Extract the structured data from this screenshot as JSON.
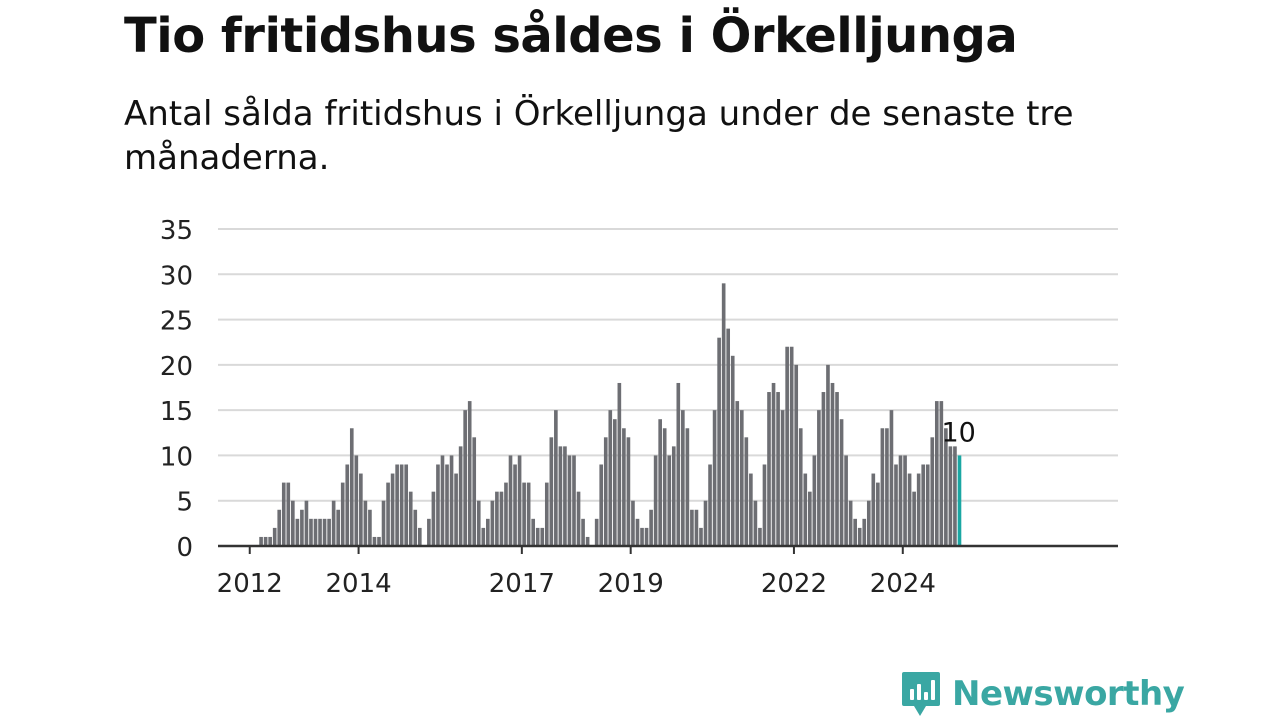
{
  "header": {
    "title": "Tio fritidshus såldes i Örkelljunga",
    "subtitle": "Antal sålda fritidshus i Örkelljunga under de senaste tre månaderna."
  },
  "brand": {
    "name": "Newsworthy",
    "color": "#3aa7a3",
    "icon": "newsworthy-logo-icon"
  },
  "colors": {
    "bar": "#6d6e73",
    "highlight": "#1aa7a3",
    "grid": "#d9d9d9",
    "axis": "#333333"
  },
  "chart_data": {
    "type": "bar",
    "title": "Tio fritidshus såldes i Örkelljunga",
    "subtitle": "Antal sålda fritidshus i Örkelljunga under de senaste tre månaderna.",
    "xlabel": "",
    "ylabel": "",
    "ylim": [
      0,
      35
    ],
    "yticks": [
      0,
      5,
      10,
      15,
      20,
      25,
      30,
      35
    ],
    "grid": true,
    "x_tick_labels": [
      "2012",
      "2014",
      "2017",
      "2019",
      "2022",
      "2024"
    ],
    "first_period": "2011-06",
    "frequency": "monthly",
    "values": [
      0,
      0,
      0,
      0,
      0,
      0,
      0,
      0,
      0,
      1,
      1,
      1,
      2,
      4,
      7,
      7,
      5,
      3,
      4,
      5,
      3,
      3,
      3,
      3,
      3,
      5,
      4,
      7,
      9,
      13,
      10,
      8,
      5,
      4,
      1,
      1,
      5,
      7,
      8,
      9,
      9,
      9,
      6,
      4,
      2,
      0,
      3,
      6,
      9,
      10,
      9,
      10,
      8,
      11,
      15,
      16,
      12,
      5,
      2,
      3,
      5,
      6,
      6,
      7,
      10,
      9,
      10,
      7,
      7,
      3,
      2,
      2,
      7,
      12,
      15,
      11,
      11,
      10,
      10,
      6,
      3,
      1,
      0,
      3,
      9,
      12,
      15,
      14,
      18,
      13,
      12,
      5,
      3,
      2,
      2,
      4,
      10,
      14,
      13,
      10,
      11,
      18,
      15,
      13,
      4,
      4,
      2,
      5,
      9,
      15,
      23,
      29,
      24,
      21,
      16,
      15,
      12,
      8,
      5,
      2,
      9,
      17,
      18,
      17,
      15,
      22,
      22,
      20,
      13,
      8,
      6,
      10,
      15,
      17,
      20,
      18,
      17,
      14,
      10,
      5,
      3,
      2,
      3,
      5,
      8,
      7,
      13,
      13,
      15,
      9,
      10,
      10,
      8,
      6,
      8,
      9,
      9,
      12,
      16,
      16,
      13,
      11,
      11,
      10
    ],
    "last_value_label": "10"
  }
}
